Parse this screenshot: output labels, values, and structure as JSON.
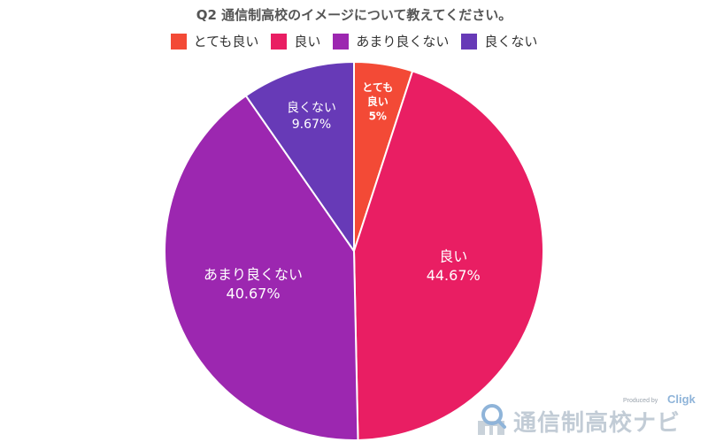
{
  "chart_data": {
    "type": "pie",
    "title": "Q2 通信制高校のイメージについて教えてください。",
    "categories": [
      "とても良い",
      "良い",
      "あまり良くない",
      "良くない"
    ],
    "values": [
      5,
      44.67,
      40.67,
      9.67
    ],
    "value_labels": [
      "5%",
      "44.67%",
      "40.67%",
      "9.67%"
    ],
    "slice_labels": [
      [
        "とても",
        "良い"
      ],
      [
        "良い"
      ],
      [
        "あまり良くない"
      ],
      [
        "良くない"
      ]
    ],
    "colors": [
      "#f34a36",
      "#e91e63",
      "#9c27b0",
      "#673ab7"
    ],
    "legend_position": "top"
  },
  "watermark": {
    "produced_by": "Produced by",
    "brand": "Cligk",
    "site_name": "通信制高校ナビ",
    "icon": "magnifier-school-icon"
  }
}
